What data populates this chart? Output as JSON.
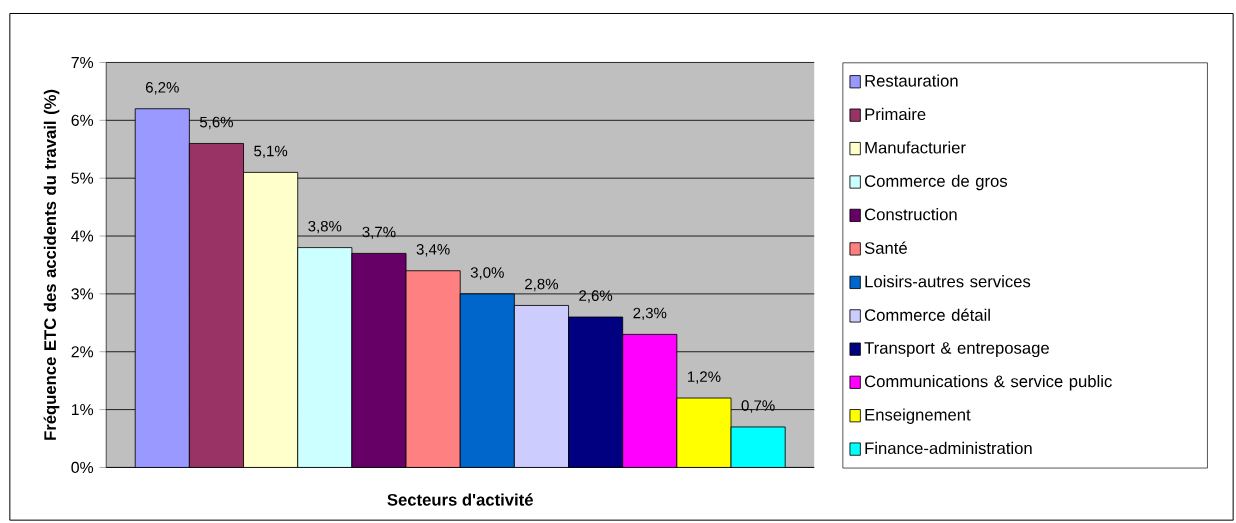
{
  "chart_data": {
    "type": "bar",
    "xlabel": "Secteurs d'activité",
    "ylabel": "Fréquence ETC des accidents du travail (%)",
    "categories": [
      null
    ],
    "series": [
      {
        "name": "Restauration",
        "color": "#9999ff",
        "values": [
          6.2
        ],
        "value_labels": [
          "6,2%"
        ]
      },
      {
        "name": "Primaire",
        "color": "#993366",
        "values": [
          5.6
        ],
        "value_labels": [
          "5,6%"
        ]
      },
      {
        "name": "Manufacturier",
        "color": "#ffffcc",
        "values": [
          5.1
        ],
        "value_labels": [
          "5,1%"
        ]
      },
      {
        "name": "Commerce de gros",
        "color": "#ccffff",
        "values": [
          3.8
        ],
        "value_labels": [
          "3,8%"
        ]
      },
      {
        "name": "Construction",
        "color": "#660066",
        "values": [
          3.7
        ],
        "value_labels": [
          "3,7%"
        ]
      },
      {
        "name": "Santé",
        "color": "#ff8080",
        "values": [
          3.4
        ],
        "value_labels": [
          "3,4%"
        ]
      },
      {
        "name": "Loisirs-autres services",
        "color": "#0066cc",
        "values": [
          3.0
        ],
        "value_labels": [
          "3,0%"
        ]
      },
      {
        "name": "Commerce détail",
        "color": "#ccccff",
        "values": [
          2.8
        ],
        "value_labels": [
          "2,8%"
        ]
      },
      {
        "name": "Transport & entreposage",
        "color": "#000080",
        "values": [
          2.6
        ],
        "value_labels": [
          "2,6%"
        ]
      },
      {
        "name": "Communications & service public",
        "color": "#ff00ff",
        "values": [
          2.3
        ],
        "value_labels": [
          "2,3%"
        ]
      },
      {
        "name": "Enseignement",
        "color": "#ffff00",
        "values": [
          1.2
        ],
        "value_labels": [
          "1,2%"
        ]
      },
      {
        "name": "Finance-administration",
        "color": "#00ffff",
        "values": [
          0.7
        ],
        "value_labels": [
          "0,7%"
        ]
      }
    ],
    "ylim": [
      0,
      7
    ],
    "yticks": [
      {
        "value": 0,
        "label": "0%"
      },
      {
        "value": 1,
        "label": "1%"
      },
      {
        "value": 2,
        "label": "2%"
      },
      {
        "value": 3,
        "label": "3%"
      },
      {
        "value": 4,
        "label": "4%"
      },
      {
        "value": 5,
        "label": "5%"
      },
      {
        "value": 6,
        "label": "6%"
      },
      {
        "value": 7,
        "label": "7%"
      }
    ],
    "grid": "y",
    "legend": "right"
  }
}
